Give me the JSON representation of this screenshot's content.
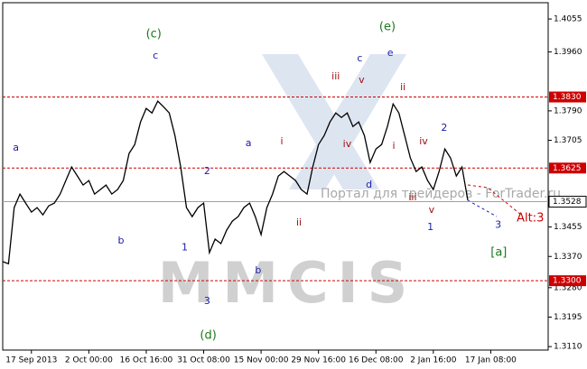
{
  "chart_data": {
    "type": "line",
    "x": [
      0,
      1,
      2,
      3,
      4,
      5,
      6,
      7,
      8,
      9,
      10,
      11,
      12,
      13,
      14,
      15,
      16,
      17,
      18,
      19,
      20,
      21,
      22,
      23,
      24,
      25,
      26,
      27,
      28,
      29,
      30,
      31,
      32,
      33,
      34,
      35,
      36,
      37,
      38,
      39,
      40,
      41,
      42,
      43,
      44,
      45,
      46,
      47,
      48,
      49,
      50,
      51,
      52,
      53,
      54,
      55,
      56,
      57,
      58,
      59,
      60,
      61,
      62,
      63,
      64,
      65,
      66,
      67,
      68,
      69,
      70,
      71,
      72,
      73,
      74,
      75,
      76,
      77,
      78,
      79,
      80,
      81
    ],
    "values": [
      1.3355,
      1.3349,
      1.3511,
      1.355,
      1.3524,
      1.3498,
      1.3511,
      1.349,
      1.3516,
      1.3524,
      1.355,
      1.3589,
      1.3628,
      1.3602,
      1.3576,
      1.3589,
      1.355,
      1.3563,
      1.3576,
      1.355,
      1.3563,
      1.3589,
      1.3667,
      1.3693,
      1.3758,
      1.3797,
      1.3784,
      1.3818,
      1.3802,
      1.3784,
      1.3719,
      1.3628,
      1.3511,
      1.3485,
      1.3511,
      1.3524,
      1.3381,
      1.342,
      1.3407,
      1.3446,
      1.3472,
      1.3485,
      1.3511,
      1.3524,
      1.3485,
      1.3433,
      1.3511,
      1.355,
      1.3602,
      1.3615,
      1.3602,
      1.3589,
      1.3563,
      1.355,
      1.3628,
      1.3693,
      1.3719,
      1.3758,
      1.3784,
      1.3771,
      1.3784,
      1.3745,
      1.3758,
      1.3719,
      1.3641,
      1.368,
      1.3693,
      1.3745,
      1.381,
      1.3784,
      1.3719,
      1.3654,
      1.3615,
      1.3628,
      1.3589,
      1.3563,
      1.3615,
      1.368,
      1.3654,
      1.3602,
      1.3628,
      1.3532
    ],
    "color": "#000000",
    "xlim": [
      0,
      95
    ],
    "xticks": [
      {
        "value": 5,
        "label": "17 Sep 2013"
      },
      {
        "value": 15,
        "label": "2 Oct 00:00"
      },
      {
        "value": 25,
        "label": "16 Oct 16:00"
      },
      {
        "value": 35,
        "label": "31 Oct 08:00"
      },
      {
        "value": 45,
        "label": "15 Nov 00:00"
      },
      {
        "value": 55,
        "label": "29 Nov 16:00"
      },
      {
        "value": 65,
        "label": "16 Dec 08:00"
      },
      {
        "value": 75,
        "label": "2 Jan 16:00"
      },
      {
        "value": 85,
        "label": "17 Jan 08:00"
      }
    ],
    "ylim": [
      1.31,
      1.4102
    ],
    "yticks": [
      1.4055,
      {
        "value": 1.396,
        "label": "1.3960"
      },
      {
        "value": 1.379,
        "label": "1.3790"
      },
      1.3705,
      1.3455,
      {
        "value": 1.337,
        "label": "1.3370"
      },
      {
        "value": 1.328,
        "label": "1.3280"
      },
      1.3195,
      {
        "value": 1.311,
        "label": "1.3110"
      }
    ],
    "levels": [
      {
        "value": 1.383,
        "label": "1.3830"
      },
      1.3625,
      {
        "value": 1.33,
        "label": "1.3300"
      }
    ],
    "level_color": "#cc0000",
    "last_price": 1.3528,
    "annotations": [
      {
        "text": "(c)",
        "x": 26.3,
        "y": 1.4011,
        "color": "#1a7a1a"
      },
      {
        "text": "c",
        "x": 26.6,
        "y": 1.3948,
        "color": "#1a1aaa"
      },
      {
        "text": "a",
        "x": 2.3,
        "y": 1.3683,
        "color": "#1a1aaa"
      },
      {
        "text": "b",
        "x": 20.6,
        "y": 1.3415,
        "color": "#1a1aaa"
      },
      {
        "text": "1",
        "x": 31.7,
        "y": 1.3396,
        "color": "#1a1aaa"
      },
      {
        "text": "2",
        "x": 35.6,
        "y": 1.3615,
        "color": "#1a1aaa"
      },
      {
        "text": "3",
        "x": 35.6,
        "y": 1.324,
        "color": "#1a1aaa"
      },
      {
        "text": "(d)",
        "x": 35.8,
        "y": 1.3141,
        "color": "#1a7a1a"
      },
      {
        "text": "a",
        "x": 42.8,
        "y": 1.3696,
        "color": "#1a1aaa"
      },
      {
        "text": "b",
        "x": 44.5,
        "y": 1.3329,
        "color": "#1a1aaa"
      },
      {
        "text": "i",
        "x": 48.6,
        "y": 1.3701,
        "color": "#a01010"
      },
      {
        "text": "ii",
        "x": 51.6,
        "y": 1.3467,
        "color": "#a01010"
      },
      {
        "text": "iii",
        "x": 58,
        "y": 1.3888,
        "color": "#a01010"
      },
      {
        "text": "iv",
        "x": 60,
        "y": 1.3693,
        "color": "#a01010"
      },
      {
        "text": "v",
        "x": 62.5,
        "y": 1.3878,
        "color": "#a01010"
      },
      {
        "text": "c",
        "x": 62.2,
        "y": 1.394,
        "color": "#1a1aaa"
      },
      {
        "text": "(e)",
        "x": 67,
        "y": 1.4032,
        "color": "#1a7a1a"
      },
      {
        "text": "e",
        "x": 67.5,
        "y": 1.3956,
        "color": "#1a1aaa"
      },
      {
        "text": "ii",
        "x": 69.7,
        "y": 1.3857,
        "color": "#a01010"
      },
      {
        "text": "d",
        "x": 63.8,
        "y": 1.3576,
        "color": "#1a1aaa"
      },
      {
        "text": "i",
        "x": 68.1,
        "y": 1.3688,
        "color": "#a01010"
      },
      {
        "text": "iv",
        "x": 73.3,
        "y": 1.3701,
        "color": "#a01010"
      },
      {
        "text": "iii",
        "x": 71.4,
        "y": 1.354,
        "color": "#a01010"
      },
      {
        "text": "v",
        "x": 74.7,
        "y": 1.3503,
        "color": "#a01010"
      },
      {
        "text": "1",
        "x": 74.5,
        "y": 1.3454,
        "color": "#1a1aaa"
      },
      {
        "text": "2",
        "x": 76.9,
        "y": 1.374,
        "color": "#1a1aaa"
      },
      {
        "text": "3",
        "x": 86.3,
        "y": 1.3461,
        "color": "#1a1aaa"
      },
      {
        "text": "Alt:3",
        "x": 91.9,
        "y": 1.348,
        "color": "#cc0000"
      },
      {
        "text": "[a]",
        "x": 86.4,
        "y": 1.3381,
        "color": "#1a7a1a"
      }
    ],
    "watermark": "Портал для трейдеров - ForTrader.ru",
    "logo": "MMCIS"
  }
}
